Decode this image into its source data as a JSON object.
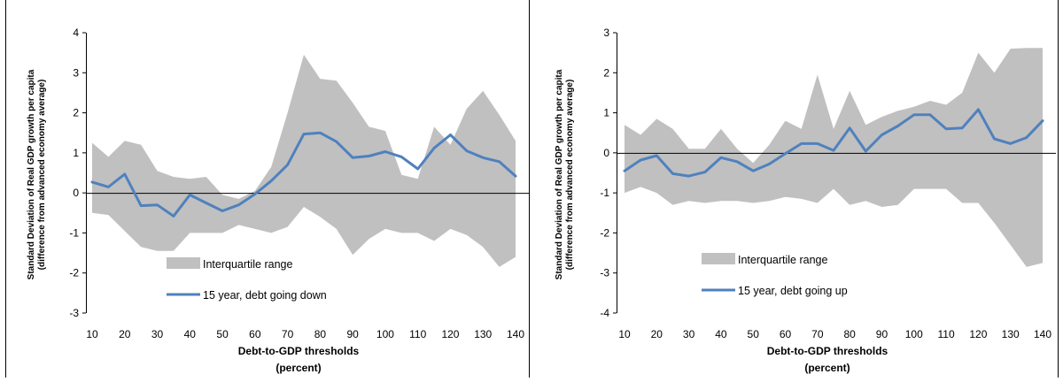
{
  "chart_data": [
    {
      "type": "area",
      "title": "",
      "xlabel": [
        "Debt-to-GDP thresholds",
        "(percent)"
      ],
      "ylabel": [
        "Standard Deviation of Real GDP growth per capita",
        "(difference from advanced economy average)"
      ],
      "ylim": [
        -3,
        4
      ],
      "yticks": [
        4,
        3,
        2,
        1,
        0,
        -1,
        -2,
        -3
      ],
      "xticks": [
        10,
        20,
        30,
        40,
        50,
        60,
        70,
        80,
        90,
        100,
        110,
        120,
        130,
        140
      ],
      "legend_position": "bottom-left",
      "grid": false,
      "x": [
        10,
        15,
        20,
        25,
        30,
        35,
        40,
        45,
        50,
        55,
        60,
        65,
        70,
        75,
        80,
        85,
        90,
        95,
        100,
        105,
        110,
        115,
        120,
        125,
        130,
        135,
        140
      ],
      "series": [
        {
          "name": "Interquartile range",
          "kind": "band",
          "color": "#c0c0c0",
          "upper": [
            1.25,
            0.9,
            1.3,
            1.2,
            0.55,
            0.4,
            0.35,
            0.4,
            -0.05,
            -0.15,
            0.05,
            0.65,
            2.0,
            3.45,
            2.85,
            2.8,
            2.25,
            1.65,
            1.55,
            0.45,
            0.35,
            1.65,
            1.2,
            2.1,
            2.55,
            1.95,
            1.3
          ],
          "lower": [
            -0.5,
            -0.55,
            -0.95,
            -1.35,
            -1.45,
            -1.45,
            -1.0,
            -1.0,
            -1.0,
            -0.8,
            -0.9,
            -1.0,
            -0.85,
            -0.35,
            -0.6,
            -0.9,
            -1.55,
            -1.15,
            -0.9,
            -1.0,
            -1.0,
            -1.2,
            -0.9,
            -1.05,
            -1.35,
            -1.85,
            -1.6
          ]
        },
        {
          "name": "15 year, debt going down",
          "kind": "line",
          "color": "#4f81bd",
          "values": [
            0.27,
            0.15,
            0.47,
            -0.32,
            -0.3,
            -0.58,
            -0.05,
            -0.25,
            -0.45,
            -0.3,
            -0.03,
            0.3,
            0.7,
            1.47,
            1.5,
            1.28,
            0.88,
            0.92,
            1.03,
            0.9,
            0.6,
            1.12,
            1.45,
            1.05,
            0.88,
            0.78,
            0.42
          ]
        }
      ]
    },
    {
      "type": "area",
      "title": "",
      "xlabel": [
        "Debt-to-GDP thresholds",
        "(percent)"
      ],
      "ylabel": [
        "Standard Deviation of Real GDP growth per capita",
        "(difference from advanced economy average)"
      ],
      "ylim": [
        -4,
        3
      ],
      "yticks": [
        3,
        2,
        1,
        0,
        -1,
        -2,
        -3,
        -4
      ],
      "xticks": [
        10,
        20,
        30,
        40,
        50,
        60,
        70,
        80,
        90,
        100,
        110,
        120,
        130,
        140
      ],
      "legend_position": "bottom-left",
      "grid": false,
      "x": [
        10,
        15,
        20,
        25,
        30,
        35,
        40,
        45,
        50,
        55,
        60,
        65,
        70,
        75,
        80,
        85,
        90,
        95,
        100,
        105,
        110,
        115,
        120,
        125,
        130,
        135,
        140
      ],
      "series": [
        {
          "name": "Interquartile range",
          "kind": "band",
          "color": "#c0c0c0",
          "upper": [
            0.7,
            0.45,
            0.85,
            0.6,
            0.1,
            0.1,
            0.6,
            0.1,
            -0.25,
            0.2,
            0.8,
            0.6,
            1.95,
            0.6,
            1.55,
            0.7,
            0.9,
            1.05,
            1.15,
            1.3,
            1.2,
            1.5,
            2.5,
            2.0,
            2.6,
            2.62,
            2.62
          ],
          "lower": [
            -1.0,
            -0.85,
            -1.0,
            -1.3,
            -1.2,
            -1.25,
            -1.2,
            -1.2,
            -1.25,
            -1.2,
            -1.1,
            -1.15,
            -1.25,
            -0.9,
            -1.3,
            -1.2,
            -1.35,
            -1.3,
            -0.9,
            -0.9,
            -0.9,
            -1.25,
            -1.25,
            -1.75,
            -2.3,
            -2.85,
            -2.75
          ]
        },
        {
          "name": "15 year, debt going up",
          "kind": "line",
          "color": "#4f81bd",
          "values": [
            -0.45,
            -0.18,
            -0.07,
            -0.52,
            -0.58,
            -0.48,
            -0.12,
            -0.22,
            -0.45,
            -0.28,
            -0.02,
            0.23,
            0.23,
            0.06,
            0.62,
            0.04,
            0.45,
            0.67,
            0.95,
            0.95,
            0.6,
            0.62,
            1.08,
            0.35,
            0.23,
            0.38,
            0.8
          ]
        }
      ]
    }
  ]
}
